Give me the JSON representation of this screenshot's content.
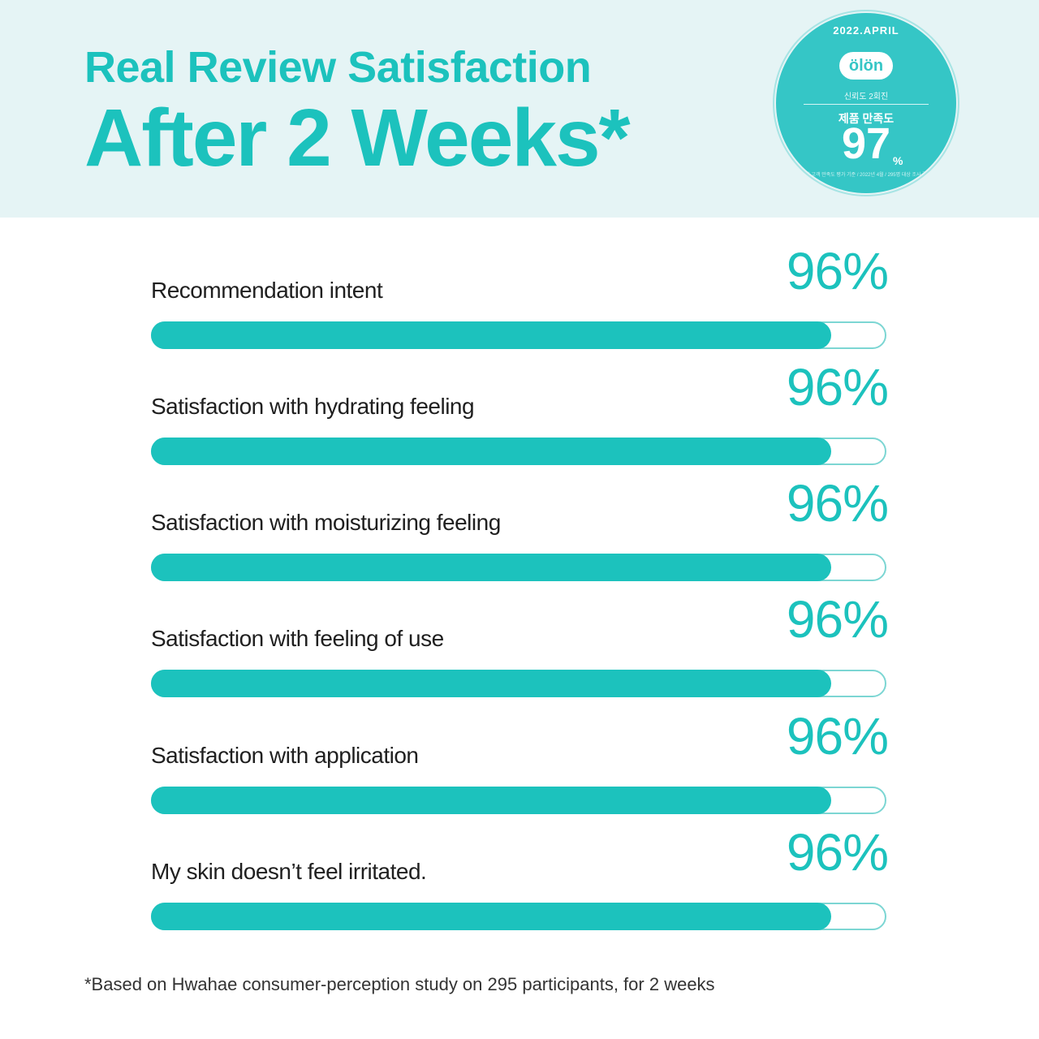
{
  "header": {
    "title_line1": "Real Review Satisfaction",
    "title_line2": "After 2 Weeks*"
  },
  "badge": {
    "top_text": "2022.APRIL",
    "logo_text": "ölön",
    "small_text": "신뢰도 2회진",
    "label": "제품 만족도",
    "value": "97",
    "percent_sign": "%",
    "footnote": "화해 고객 만족도 평가 기준 / 2022년 4월 / 295명 대상 조사 결과"
  },
  "chart_data": {
    "type": "bar",
    "orientation": "horizontal",
    "categories": [
      "Recommendation intent",
      "Satisfaction with hydrating feeling",
      "Satisfaction with moisturizing feeling",
      "Satisfaction with feeling of use",
      "Satisfaction with application",
      "My skin doesn’t feel irritated."
    ],
    "values": [
      96,
      96,
      96,
      96,
      96,
      96
    ],
    "value_labels": [
      "96%",
      "96%",
      "96%",
      "96%",
      "96%",
      "96%"
    ],
    "xlim": [
      0,
      100
    ],
    "unit": "%",
    "grid": false,
    "colors": {
      "fill": "#1cc2bd",
      "track_border": "#7cd6d3",
      "track": "#ffffff"
    }
  },
  "footnote": "*Based on Hwahae consumer-perception study on 295 participants, for 2 weeks",
  "colors": {
    "accent": "#1cc2bd",
    "header_bg": "#e5f4f5",
    "badge_bg": "#35c6c6",
    "text": "#1f1f1f"
  }
}
